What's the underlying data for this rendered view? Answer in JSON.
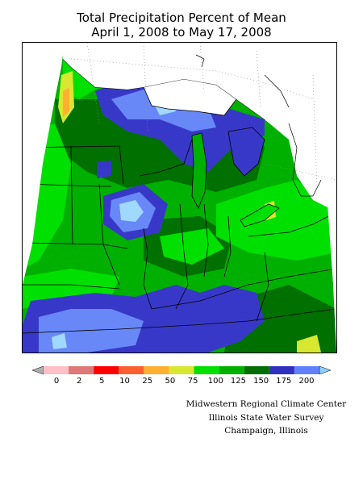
{
  "title": {
    "line1": "Total Precipitation Percent of Mean",
    "line2": "April 1, 2008 to May 17, 2008"
  },
  "legend": {
    "labels": [
      "0",
      "2",
      "5",
      "10",
      "25",
      "50",
      "75",
      "100",
      "125",
      "150",
      "175",
      "200"
    ],
    "colors": [
      "#b0b0b0",
      "#ffc0c8",
      "#e07878",
      "#ff0000",
      "#ff6030",
      "#ffb030",
      "#d8e830",
      "#00e000",
      "#00b000",
      "#007000",
      "#3030c0",
      "#6080ff",
      "#90d0ff"
    ]
  },
  "palette": {
    "green_light": "#00e000",
    "green_mid": "#00b000",
    "green_dark": "#007000",
    "blue_dark": "#3838c8",
    "blue_mid": "#6888f8",
    "blue_light": "#a0d8ff",
    "yellow": "#d8e830",
    "orange": "#ffb030",
    "lake": "#ffffff"
  },
  "credit": {
    "line1": "Midwestern Regional Climate Center",
    "line2": "Illinois State Water Survey",
    "line3": "Champaign, Illinois"
  }
}
